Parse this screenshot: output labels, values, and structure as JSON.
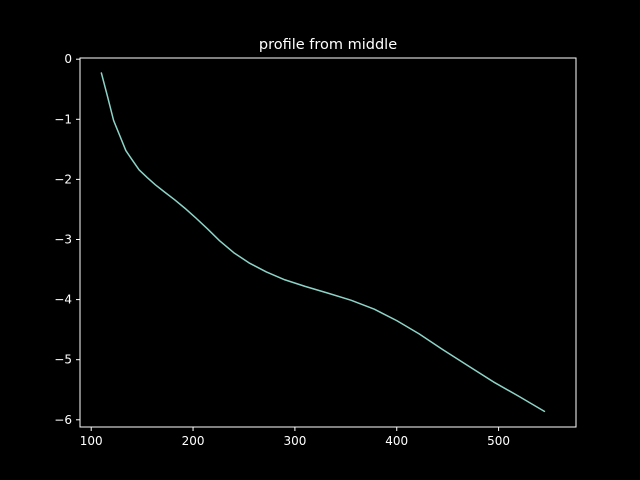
{
  "chart_data": {
    "type": "line",
    "title": "profile from middle",
    "xlabel": "",
    "ylabel": "",
    "xlim": [
      89,
      576
    ],
    "ylim": [
      -6.12,
      0.02
    ],
    "grid": false,
    "background": "#000000",
    "axes_color": "#ffffff",
    "xticks": [
      100,
      200,
      300,
      400,
      500
    ],
    "yticks": [
      0,
      -1,
      -2,
      -3,
      -4,
      -5,
      -6
    ],
    "xtick_labels": [
      "100",
      "200",
      "300",
      "400",
      "500"
    ],
    "ytick_labels": [
      "0",
      "−1",
      "−2",
      "−3",
      "−4",
      "−5",
      "−6"
    ],
    "series": [
      {
        "color": "#8dd3c7",
        "x": [
          110,
          116,
          122,
          128,
          134,
          140,
          147,
          155,
          163,
          172,
          182,
          192,
          202,
          214,
          226,
          240,
          255,
          272,
          290,
          310,
          332,
          355,
          378,
          400,
          422,
          445,
          470,
          495,
          520,
          545
        ],
        "y": [
          -0.23,
          -0.62,
          -1.02,
          -1.27,
          -1.52,
          -1.67,
          -1.84,
          -1.97,
          -2.09,
          -2.21,
          -2.34,
          -2.48,
          -2.63,
          -2.82,
          -3.02,
          -3.22,
          -3.39,
          -3.54,
          -3.67,
          -3.78,
          -3.89,
          -4.01,
          -4.16,
          -4.35,
          -4.57,
          -4.83,
          -5.1,
          -5.37,
          -5.61,
          -5.86
        ]
      }
    ]
  }
}
